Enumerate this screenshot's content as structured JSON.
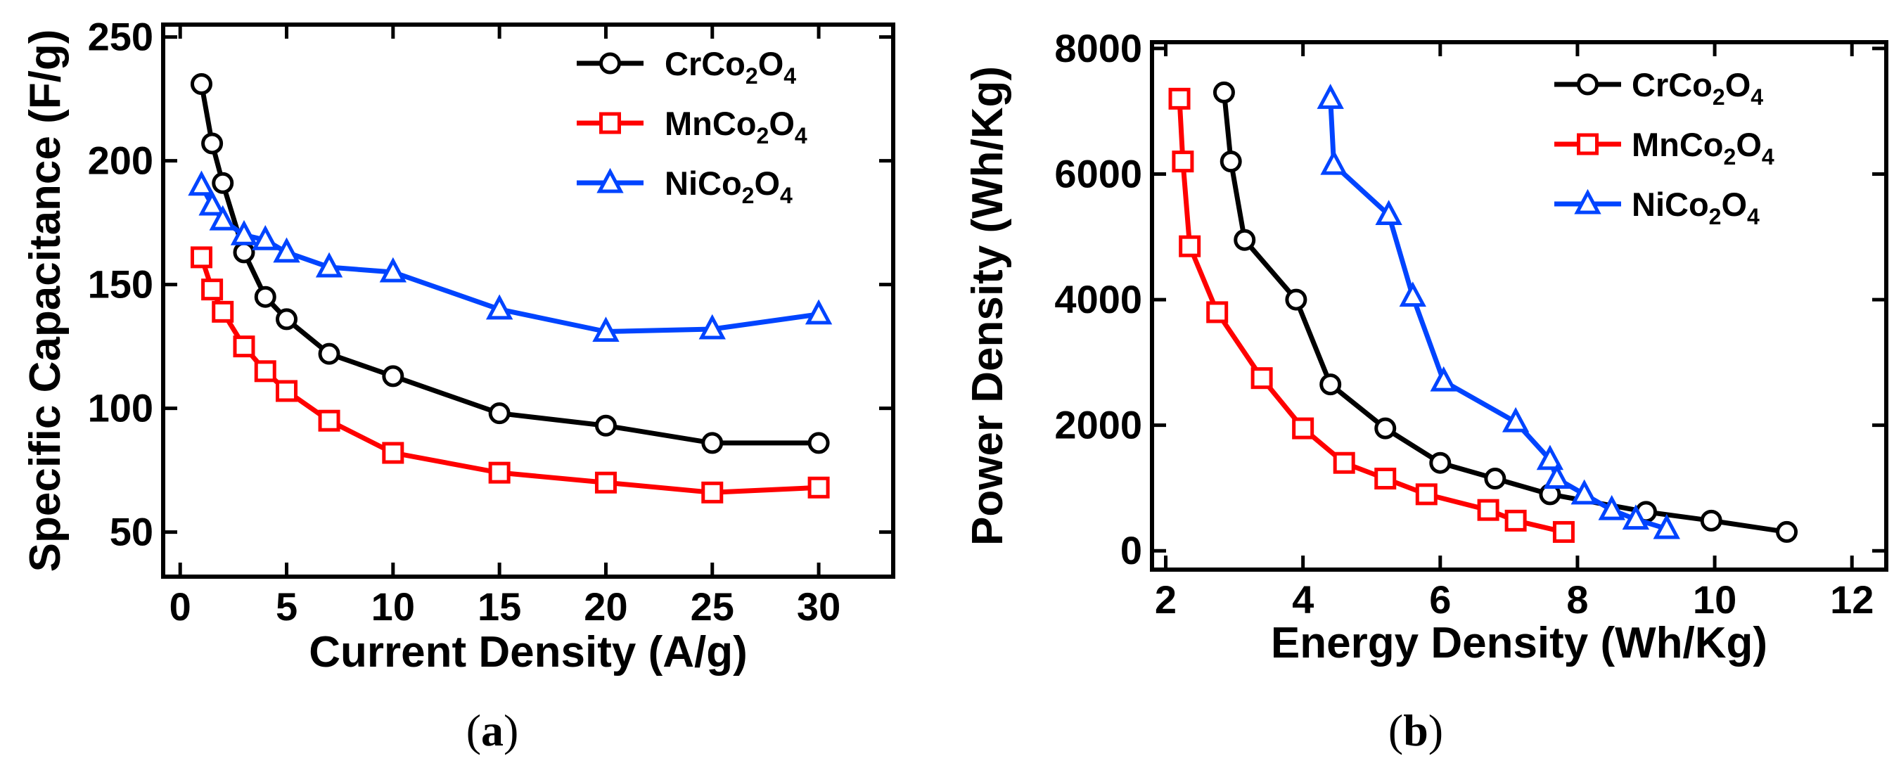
{
  "chart_data": [
    {
      "type": "line",
      "panel_label": "(a)",
      "panel_letter": "a",
      "xlabel": "Current Density (A/g)",
      "ylabel": "Specific Capacitance (F/g)",
      "xlim": [
        -0.8,
        33.5
      ],
      "ylim": [
        32,
        255
      ],
      "xticks": [
        0,
        5,
        10,
        15,
        20,
        25,
        30
      ],
      "yticks": [
        50,
        100,
        150,
        200,
        250
      ],
      "legend_position": "top-right",
      "series": [
        {
          "name": "CrCo2O4",
          "label_main": "CrCo",
          "sub1": "2",
          "mid": "O",
          "sub2": "4",
          "color": "#000000",
          "marker": "circle",
          "x": [
            1,
            1.5,
            2,
            3,
            4,
            5,
            7,
            10,
            15,
            20,
            25,
            30
          ],
          "y": [
            231,
            207,
            191,
            163,
            145,
            136,
            122,
            113,
            98,
            93,
            86,
            86
          ]
        },
        {
          "name": "MnCo2O4",
          "label_main": "MnCo",
          "sub1": "2",
          "mid": "O",
          "sub2": "4",
          "color": "#ff0000",
          "marker": "square",
          "x": [
            1,
            1.5,
            2,
            3,
            4,
            5,
            7,
            10,
            15,
            20,
            25,
            30
          ],
          "y": [
            161,
            148,
            139,
            125,
            115,
            107,
            95,
            82,
            74,
            70,
            66,
            68
          ]
        },
        {
          "name": "NiCo2O4",
          "label_main": "NiCo",
          "sub1": "2",
          "mid": "O",
          "sub2": "4",
          "color": "#0044ff",
          "marker": "triangle",
          "x": [
            1,
            1.5,
            2,
            3,
            4,
            5,
            7,
            10,
            15,
            20,
            25,
            30
          ],
          "y": [
            190,
            182,
            176,
            170,
            168,
            163,
            157,
            155,
            140,
            131,
            132,
            138
          ]
        }
      ]
    },
    {
      "type": "line",
      "panel_label": "(b)",
      "panel_letter": "b",
      "xlabel": "Energy Density (Wh/Kg)",
      "ylabel": "Power Density (Wh/Kg)",
      "xlim": [
        1.8,
        12.5
      ],
      "ylim": [
        -300,
        8100
      ],
      "xticks": [
        2,
        4,
        6,
        8,
        10,
        12
      ],
      "yticks": [
        0,
        2000,
        4000,
        6000,
        8000
      ],
      "legend_position": "top-right",
      "series": [
        {
          "name": "CrCo2O4",
          "label_main": "CrCo",
          "sub1": "2",
          "mid": "O",
          "sub2": "4",
          "color": "#000000",
          "marker": "circle",
          "x": [
            2.85,
            2.95,
            3.15,
            3.9,
            4.4,
            5.2,
            6.0,
            6.8,
            7.6,
            9.0,
            9.95,
            11.05
          ],
          "y": [
            7300,
            6200,
            4950,
            4000,
            2650,
            1950,
            1400,
            1150,
            900,
            620,
            480,
            300
          ]
        },
        {
          "name": "MnCo2O4",
          "label_main": "MnCo",
          "sub1": "2",
          "mid": "O",
          "sub2": "4",
          "color": "#ff0000",
          "marker": "square",
          "x": [
            2.2,
            2.25,
            2.35,
            2.75,
            3.4,
            4.0,
            4.6,
            5.2,
            5.8,
            6.7,
            7.1,
            7.8
          ],
          "y": [
            7200,
            6200,
            4850,
            3800,
            2750,
            1950,
            1400,
            1150,
            900,
            650,
            480,
            300
          ]
        },
        {
          "name": "NiCo2O4",
          "label_main": "NiCo",
          "sub1": "2",
          "mid": "O",
          "sub2": "4",
          "color": "#0044ff",
          "marker": "triangle",
          "x": [
            4.4,
            4.45,
            5.25,
            5.6,
            6.05,
            7.1,
            7.6,
            7.7,
            8.1,
            8.5,
            8.85,
            9.3
          ],
          "y": [
            7200,
            6150,
            5350,
            4050,
            2700,
            2050,
            1450,
            1150,
            900,
            650,
            500,
            350
          ]
        }
      ]
    }
  ]
}
